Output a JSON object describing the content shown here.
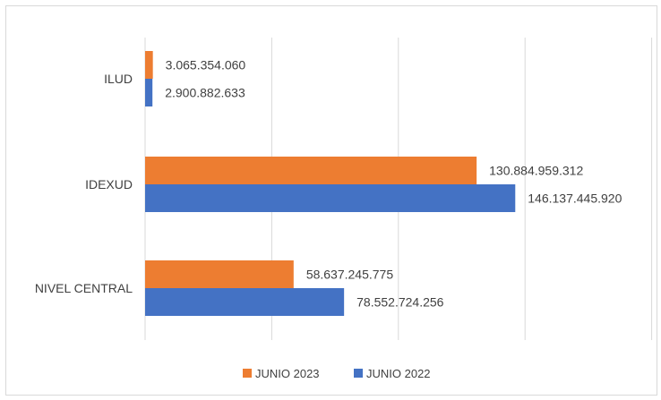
{
  "chart_data": {
    "type": "bar",
    "orientation": "horizontal",
    "categories": [
      "ILUD",
      "IDEXUD",
      "NIVEL CENTRAL"
    ],
    "series": [
      {
        "name": "JUNIO 2023",
        "color": "#ED7D31",
        "values": [
          3065354060,
          130884959312,
          58637245775
        ],
        "labels": [
          "3.065.354.060",
          "130.884.959.312",
          "58.637.245.775"
        ]
      },
      {
        "name": "JUNIO 2022",
        "color": "#4472C4",
        "values": [
          2900882633,
          146137445920,
          78552724256
        ],
        "labels": [
          "2.900.882.633",
          "146.137.445.920",
          "78.552.724.256"
        ]
      }
    ],
    "xlim": [
      0,
      200000000000
    ],
    "grid": true,
    "legend_position": "bottom"
  }
}
